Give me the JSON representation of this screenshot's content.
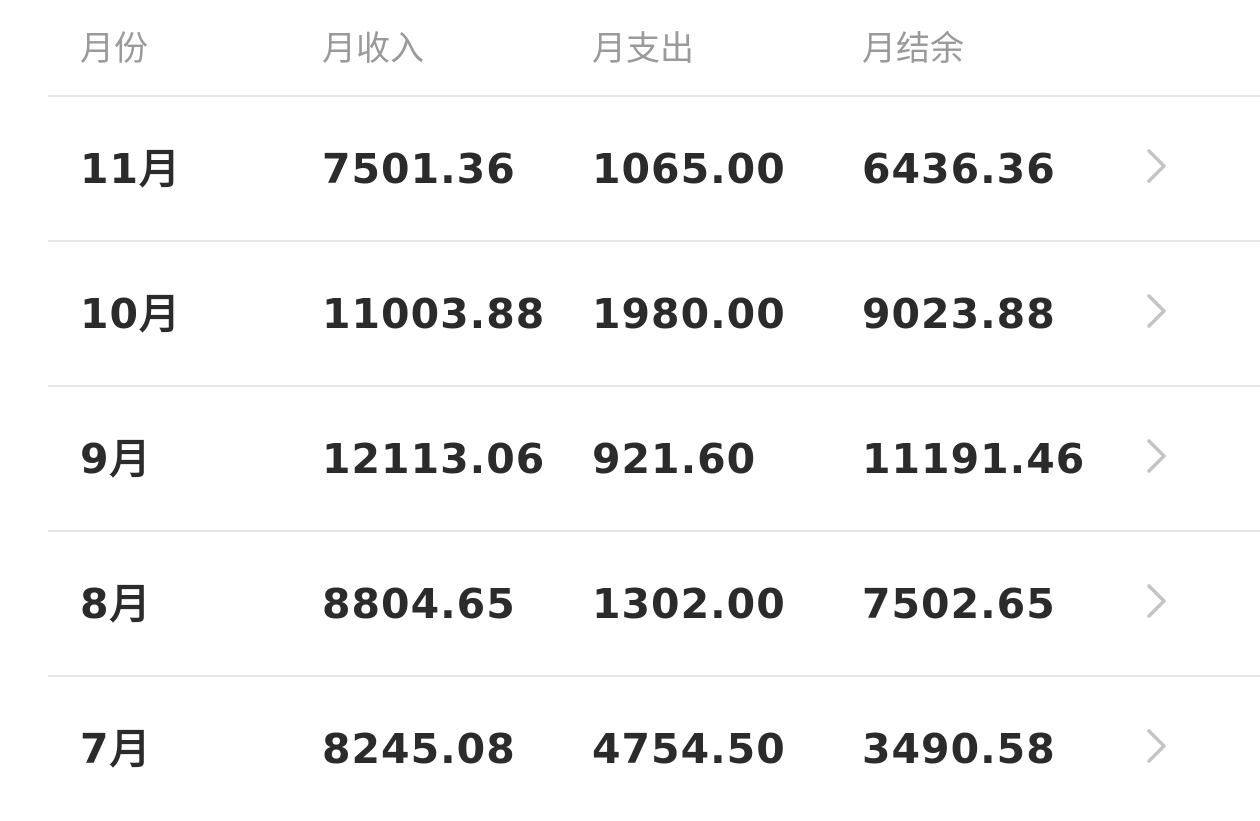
{
  "header": [
    "月份",
    "月收入",
    "月支出",
    "月结余"
  ],
  "rows": [
    {
      "month": "11月",
      "income": "7501.36",
      "expense": "1065.00",
      "balance": "6436.36"
    },
    {
      "month": "10月",
      "income": "11003.88",
      "expense": "1980.00",
      "balance": "9023.88"
    },
    {
      "month": "9月",
      "income": "12113.06",
      "expense": "921.60",
      "balance": "11191.46"
    },
    {
      "month": "8月",
      "income": "8804.65",
      "expense": "1302.00",
      "balance": "7502.65"
    },
    {
      "month": "7月",
      "income": "8245.08",
      "expense": "4754.50",
      "balance": "3490.58"
    }
  ],
  "icons": {
    "row_action": "chevron-right-icon"
  }
}
